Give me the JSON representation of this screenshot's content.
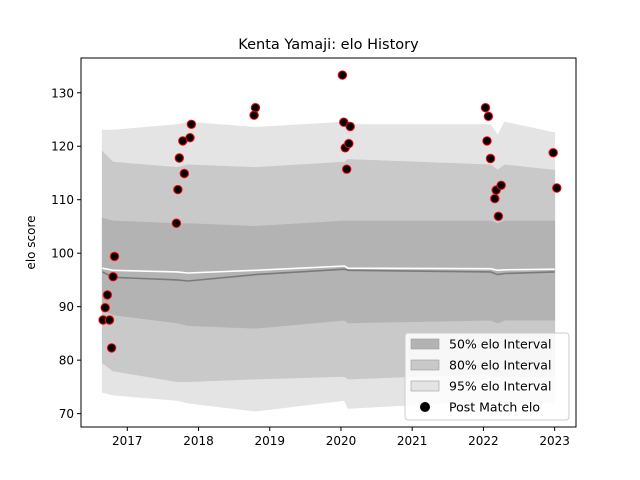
{
  "chart_data": {
    "type": "scatter",
    "title": "Kenta Yamaji: elo History",
    "xlabel": "",
    "ylabel": "elo score",
    "xlim": [
      2016.35,
      2023.3
    ],
    "ylim": [
      67.5,
      136.5
    ],
    "x_ticks": [
      "2017",
      "2018",
      "2019",
      "2020",
      "2021",
      "2022",
      "2023"
    ],
    "y_ticks": [
      "70",
      "80",
      "90",
      "100",
      "110",
      "120",
      "130"
    ],
    "grid": false,
    "legend_position": "lower-right",
    "bands": [
      {
        "name": "95% elo Interval",
        "color": "#e4e4e4",
        "x": [
          2016.65,
          2016.8,
          2017.7,
          2017.85,
          2018.8,
          2020.05,
          2020.1,
          2022.1,
          2022.2,
          2022.3,
          2023.0
        ],
        "upper": [
          123.0,
          123.0,
          124.0,
          124.5,
          123.5,
          124.5,
          124.0,
          124.0,
          122.0,
          124.5,
          122.5
        ],
        "lower": [
          74.0,
          73.5,
          72.5,
          72.0,
          70.5,
          72.5,
          71.0,
          72.5,
          72.5,
          72.0,
          72.0
        ]
      },
      {
        "name": "80% elo Interval",
        "color": "#c9c9c9",
        "x": [
          2016.65,
          2016.8,
          2017.7,
          2017.85,
          2018.8,
          2020.05,
          2020.1,
          2022.1,
          2022.2,
          2022.3,
          2023.0
        ],
        "upper": [
          119.0,
          117.0,
          116.0,
          116.5,
          116.0,
          117.0,
          117.5,
          116.5,
          115.5,
          116.5,
          115.5
        ],
        "lower": [
          79.5,
          78.0,
          76.0,
          76.0,
          76.5,
          77.0,
          76.5,
          77.5,
          77.0,
          77.0,
          77.0
        ]
      },
      {
        "name": "50% elo Interval",
        "color": "#b3b3b3",
        "x": [
          2016.65,
          2016.8,
          2017.7,
          2017.85,
          2018.8,
          2020.05,
          2020.1,
          2022.1,
          2022.2,
          2022.3,
          2023.0
        ],
        "upper": [
          106.5,
          106.0,
          105.5,
          105.5,
          105.0,
          106.0,
          106.0,
          106.0,
          105.5,
          106.0,
          106.0
        ],
        "lower": [
          89.5,
          88.5,
          87.0,
          86.5,
          86.0,
          87.5,
          87.0,
          87.5,
          87.0,
          87.5,
          87.5
        ]
      }
    ],
    "mean_line": {
      "x": [
        2016.65,
        2016.8,
        2017.7,
        2017.85,
        2018.8,
        2020.05,
        2020.1,
        2022.1,
        2022.2,
        2022.3,
        2023.0
      ],
      "y": [
        96.5,
        95.5,
        95.0,
        94.8,
        96.0,
        97.0,
        96.8,
        96.5,
        96.0,
        96.2,
        96.5
      ],
      "color": "#7a7a7a"
    },
    "median_line": {
      "x": [
        2016.65,
        2016.8,
        2017.7,
        2017.85,
        2018.8,
        2020.05,
        2020.1,
        2022.1,
        2022.2,
        2022.3,
        2023.0
      ],
      "y": [
        97.2,
        96.8,
        96.5,
        96.3,
        96.8,
        97.6,
        97.2,
        97.1,
        96.8,
        96.9,
        97.0
      ],
      "color": "#ffffff"
    },
    "series": [
      {
        "name": "Post Match elo",
        "marker_fill": "#000000",
        "marker_edge": "#ff0000",
        "points": [
          {
            "x": 2016.66,
            "y": 87.5
          },
          {
            "x": 2016.69,
            "y": 89.8
          },
          {
            "x": 2016.72,
            "y": 92.2
          },
          {
            "x": 2016.75,
            "y": 87.5
          },
          {
            "x": 2016.78,
            "y": 82.3
          },
          {
            "x": 2016.8,
            "y": 95.6
          },
          {
            "x": 2016.82,
            "y": 99.4
          },
          {
            "x": 2017.69,
            "y": 105.6
          },
          {
            "x": 2017.71,
            "y": 111.9
          },
          {
            "x": 2017.73,
            "y": 117.8
          },
          {
            "x": 2017.78,
            "y": 121.0
          },
          {
            "x": 2017.8,
            "y": 114.9
          },
          {
            "x": 2017.88,
            "y": 121.6
          },
          {
            "x": 2017.9,
            "y": 124.1
          },
          {
            "x": 2018.78,
            "y": 125.8
          },
          {
            "x": 2018.8,
            "y": 127.2
          },
          {
            "x": 2020.02,
            "y": 133.3
          },
          {
            "x": 2020.04,
            "y": 124.5
          },
          {
            "x": 2020.06,
            "y": 119.7
          },
          {
            "x": 2020.08,
            "y": 115.7
          },
          {
            "x": 2020.11,
            "y": 120.5
          },
          {
            "x": 2020.13,
            "y": 123.7
          },
          {
            "x": 2022.03,
            "y": 127.2
          },
          {
            "x": 2022.05,
            "y": 121.0
          },
          {
            "x": 2022.07,
            "y": 125.6
          },
          {
            "x": 2022.1,
            "y": 117.7
          },
          {
            "x": 2022.16,
            "y": 110.2
          },
          {
            "x": 2022.18,
            "y": 111.8
          },
          {
            "x": 2022.21,
            "y": 106.9
          },
          {
            "x": 2022.25,
            "y": 112.7
          },
          {
            "x": 2022.98,
            "y": 118.8
          },
          {
            "x": 2023.03,
            "y": 112.2
          }
        ]
      }
    ],
    "legend": [
      {
        "label": "50% elo Interval",
        "kind": "patch",
        "color": "#b3b3b3"
      },
      {
        "label": "80% elo Interval",
        "kind": "patch",
        "color": "#c9c9c9"
      },
      {
        "label": "95% elo Interval",
        "kind": "patch",
        "color": "#e4e4e4"
      },
      {
        "label": "Post Match elo",
        "kind": "marker",
        "color": "#000000"
      }
    ]
  }
}
